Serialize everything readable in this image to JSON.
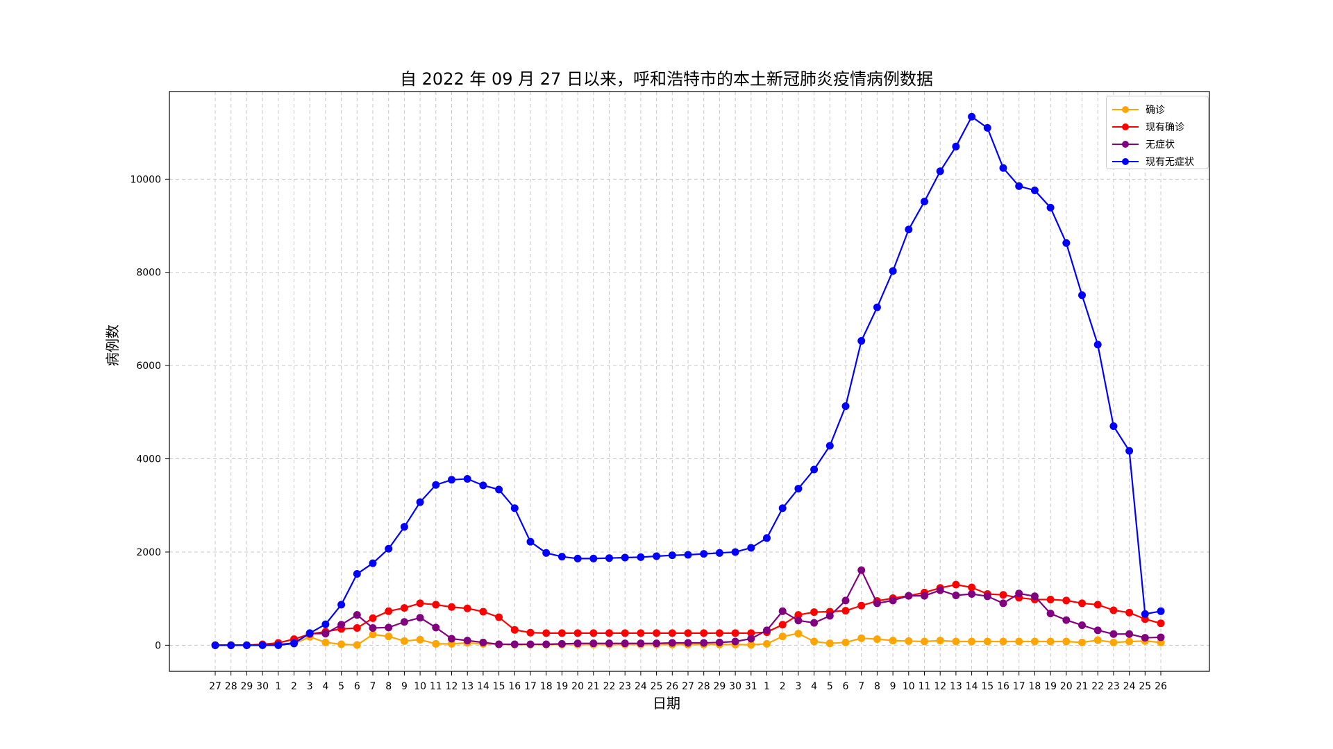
{
  "chart_data": {
    "type": "line",
    "title": "自 2022 年 09 月 27 日以来，呼和浩特市的本土新冠肺炎疫情病例数据",
    "xlabel": "日期",
    "ylabel": "病例数",
    "ylim": [
      -560,
      11880
    ],
    "yticks": [
      0,
      2000,
      4000,
      6000,
      8000,
      10000
    ],
    "grid": true,
    "legend_position": "top-right",
    "categories": [
      "27",
      "28",
      "29",
      "30",
      "1",
      "2",
      "3",
      "4",
      "5",
      "6",
      "7",
      "8",
      "9",
      "10",
      "11",
      "12",
      "13",
      "14",
      "15",
      "16",
      "17",
      "18",
      "19",
      "20",
      "21",
      "22",
      "23",
      "24",
      "25",
      "26",
      "27",
      "28",
      "29",
      "30",
      "31",
      "1",
      "2",
      "3",
      "4",
      "5",
      "6",
      "7",
      "8",
      "9",
      "10",
      "11",
      "12",
      "13",
      "14",
      "15",
      "16",
      "17",
      "18",
      "19",
      "20",
      "21",
      "22",
      "23",
      "24",
      "25",
      "26"
    ],
    "series": [
      {
        "name": "确诊",
        "color": "#ffa500",
        "values": [
          0,
          0,
          0,
          5,
          30,
          30,
          180,
          60,
          20,
          5,
          230,
          190,
          90,
          120,
          30,
          30,
          50,
          30,
          20,
          15,
          15,
          15,
          15,
          15,
          15,
          15,
          15,
          15,
          15,
          15,
          15,
          15,
          15,
          15,
          10,
          30,
          190,
          250,
          80,
          40,
          60,
          150,
          130,
          100,
          90,
          80,
          100,
          80,
          80,
          80,
          80,
          80,
          80,
          80,
          80,
          60,
          110,
          60,
          80,
          90,
          60
        ]
      },
      {
        "name": "现有确诊",
        "color": "#ff0000",
        "values": [
          0,
          0,
          0,
          20,
          50,
          130,
          240,
          290,
          350,
          370,
          580,
          730,
          800,
          900,
          870,
          820,
          790,
          720,
          600,
          330,
          270,
          260,
          260,
          260,
          260,
          260,
          260,
          260,
          260,
          260,
          260,
          260,
          260,
          260,
          260,
          280,
          440,
          650,
          710,
          720,
          740,
          850,
          950,
          1010,
          1060,
          1130,
          1230,
          1300,
          1240,
          1100,
          1080,
          1020,
          980,
          980,
          960,
          900,
          870,
          750,
          700,
          560,
          470
        ]
      },
      {
        "name": "无症状",
        "color": "#800080",
        "values": [
          0,
          0,
          0,
          5,
          10,
          50,
          250,
          250,
          440,
          650,
          370,
          380,
          500,
          590,
          380,
          140,
          100,
          60,
          20,
          20,
          20,
          20,
          30,
          40,
          40,
          40,
          40,
          40,
          40,
          50,
          50,
          50,
          60,
          80,
          140,
          320,
          730,
          530,
          480,
          630,
          960,
          1610,
          900,
          960,
          1060,
          1060,
          1180,
          1070,
          1100,
          1050,
          900,
          1110,
          1050,
          680,
          540,
          430,
          320,
          240,
          240,
          160,
          170
        ]
      },
      {
        "name": "现有无症状",
        "color": "#0000ff",
        "values": [
          0,
          0,
          0,
          0,
          0,
          40,
          260,
          450,
          870,
          1530,
          1760,
          2070,
          2540,
          3070,
          3440,
          3550,
          3570,
          3430,
          3340,
          2940,
          2220,
          1980,
          1900,
          1860,
          1860,
          1870,
          1880,
          1890,
          1910,
          1930,
          1940,
          1960,
          1980,
          2000,
          2090,
          2300,
          2940,
          3360,
          3770,
          4280,
          5130,
          6530,
          7250,
          8030,
          8920,
          9520,
          10170,
          10700,
          11340,
          11100,
          10240,
          9850,
          9760,
          9390,
          8630,
          7510,
          6450,
          4700,
          4170,
          670,
          730
        ]
      }
    ]
  }
}
